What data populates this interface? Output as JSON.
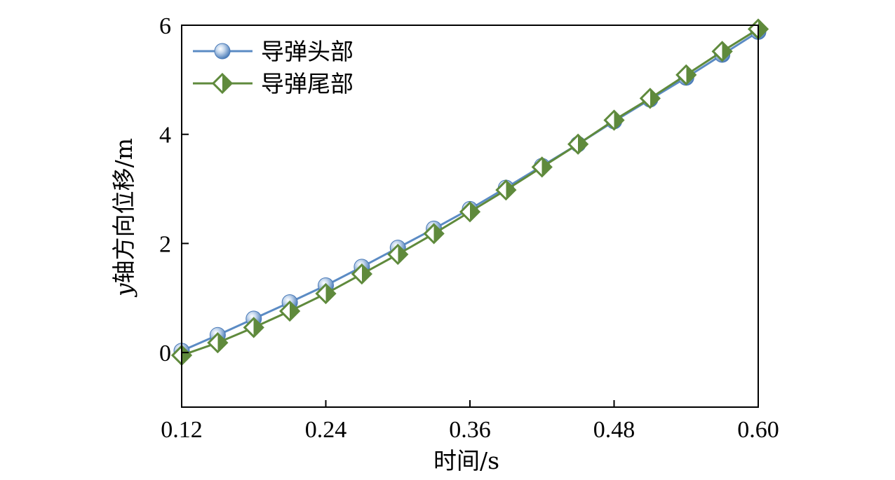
{
  "chart_data": {
    "type": "line",
    "xlabel": "时间/s",
    "ylabel_var": "y",
    "ylabel_rest": "轴方向位移/m",
    "xlim": [
      0.12,
      0.6
    ],
    "ylim": [
      -1,
      6
    ],
    "xticks": [
      0.12,
      0.24,
      0.36,
      0.48,
      0.6
    ],
    "xtick_labels": [
      "0.12",
      "0.24",
      "0.36",
      "0.48",
      "0.60"
    ],
    "yticks": [
      0,
      2,
      4,
      6
    ],
    "ytick_labels": [
      "0",
      "2",
      "4",
      "6"
    ],
    "legend_position": "top-left",
    "x": [
      0.12,
      0.15,
      0.18,
      0.21,
      0.24,
      0.27,
      0.3,
      0.33,
      0.36,
      0.39,
      0.42,
      0.45,
      0.48,
      0.51,
      0.54,
      0.57,
      0.6
    ],
    "series": [
      {
        "name": "导弹头部",
        "marker": "circle",
        "color": "#5b8bc4",
        "values": [
          0.03,
          0.32,
          0.62,
          0.92,
          1.23,
          1.57,
          1.92,
          2.27,
          2.63,
          3.02,
          3.42,
          3.82,
          4.24,
          4.64,
          5.04,
          5.46,
          5.88
        ]
      },
      {
        "name": "导弹尾部",
        "marker": "diamond",
        "color": "#5f8a3c",
        "values": [
          -0.05,
          0.18,
          0.46,
          0.76,
          1.08,
          1.44,
          1.8,
          2.18,
          2.58,
          2.98,
          3.4,
          3.82,
          4.26,
          4.66,
          5.09,
          5.52,
          5.93
        ]
      }
    ]
  }
}
